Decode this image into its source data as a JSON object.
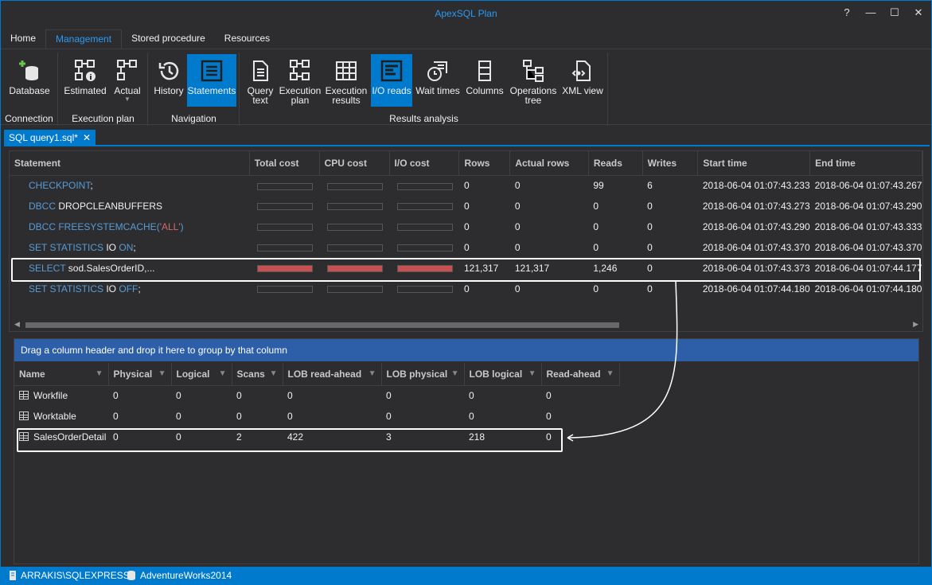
{
  "window": {
    "title": "ApexSQL Plan"
  },
  "title_buttons": [
    "?",
    "—",
    "☐",
    "✕"
  ],
  "tabs": [
    "Home",
    "Management",
    "Stored procedure",
    "Resources"
  ],
  "ribbon": {
    "connection": {
      "label": "Connection",
      "database": "Database"
    },
    "execution_plan": {
      "label": "Execution plan",
      "estimated": "Estimated",
      "actual": "Actual"
    },
    "navigation": {
      "label": "Navigation",
      "history": "History",
      "statements": "Statements"
    },
    "results_analysis": {
      "label": "Results analysis",
      "query_text_1": "Query",
      "query_text_2": "text",
      "execution_plan_1": "Execution",
      "execution_plan_2": "plan",
      "execution_results_1": "Execution",
      "execution_results_2": "results",
      "io_reads": "I/O reads",
      "wait_times": "Wait times",
      "columns": "Columns",
      "operations_tree_1": "Operations",
      "operations_tree_2": "tree",
      "xml_view": "XML view"
    }
  },
  "doc_tab": {
    "label": "SQL query1.sql*",
    "close": "✕"
  },
  "statements_grid": {
    "headers": [
      "Statement",
      "Total cost",
      "CPU cost",
      "I/O cost",
      "Rows",
      "Actual rows",
      "Reads",
      "Writes",
      "Start time",
      "End time"
    ],
    "rows": [
      {
        "kw1": "CHECKPOINT",
        "rest": ";",
        "kw2": "",
        "tail": "",
        "cost": 0,
        "rows": "0",
        "actual_rows": "0",
        "reads": "99",
        "writes": "6",
        "start": "2018-06-04 01:07:43.233",
        "end": "2018-06-04 01:07:43.267"
      },
      {
        "kw1": "DBCC",
        "rest": " DROPCLEANBUFFERS",
        "kw2": "",
        "tail": "",
        "cost": 0,
        "rows": "0",
        "actual_rows": "0",
        "reads": "0",
        "writes": "0",
        "start": "2018-06-04 01:07:43.273",
        "end": "2018-06-04 01:07:43.290"
      },
      {
        "kw1": "DBCC FREESYSTEMCACHE(",
        "rest": "'ALL'",
        "kw2": ")",
        "tail": "",
        "cost": 0,
        "rows": "0",
        "actual_rows": "0",
        "reads": "0",
        "writes": "0",
        "start": "2018-06-04 01:07:43.290",
        "end": "2018-06-04 01:07:43.333"
      },
      {
        "kw1": "SET STATISTICS",
        "rest": " IO ",
        "kw2": "ON",
        "tail": ";",
        "cost": 0,
        "rows": "0",
        "actual_rows": "0",
        "reads": "0",
        "writes": "0",
        "start": "2018-06-04 01:07:43.370",
        "end": "2018-06-04 01:07:43.370"
      },
      {
        "kw1": "SELECT",
        "rest": " sod.SalesOrderID,...",
        "kw2": "",
        "tail": "",
        "cost": 1,
        "rows": "121,317",
        "actual_rows": "121,317",
        "reads": "1,246",
        "writes": "0",
        "start": "2018-06-04 01:07:43.373",
        "end": "2018-06-04 01:07:44.177"
      },
      {
        "kw1": "SET STATISTICS",
        "rest": " IO ",
        "kw2": "OFF",
        "tail": ";",
        "cost": 0,
        "rows": "0",
        "actual_rows": "0",
        "reads": "0",
        "writes": "0",
        "start": "2018-06-04 01:07:44.180",
        "end": "2018-06-04 01:07:44.180"
      }
    ]
  },
  "group_panel": "Drag a column header and drop it here to group by that column",
  "io_grid": {
    "headers": [
      "Name",
      "Physical",
      "Logical",
      "Scans",
      "LOB read-ahead",
      "LOB physical",
      "LOB logical",
      "Read-ahead"
    ],
    "rows": [
      [
        "Workfile",
        "0",
        "0",
        "0",
        "0",
        "0",
        "0",
        "0"
      ],
      [
        "Worktable",
        "0",
        "0",
        "0",
        "0",
        "0",
        "0",
        "0"
      ],
      [
        "SalesOrderDetail",
        "0",
        "0",
        "2",
        "422",
        "3",
        "218",
        "0"
      ]
    ]
  },
  "status": {
    "server": "ARRAKIS\\SQLEXPRESS",
    "database": "AdventureWorks2014"
  },
  "colors": {
    "accent": "#007acc",
    "cost_bar": "#c95050",
    "keyword": "#569cd6"
  }
}
